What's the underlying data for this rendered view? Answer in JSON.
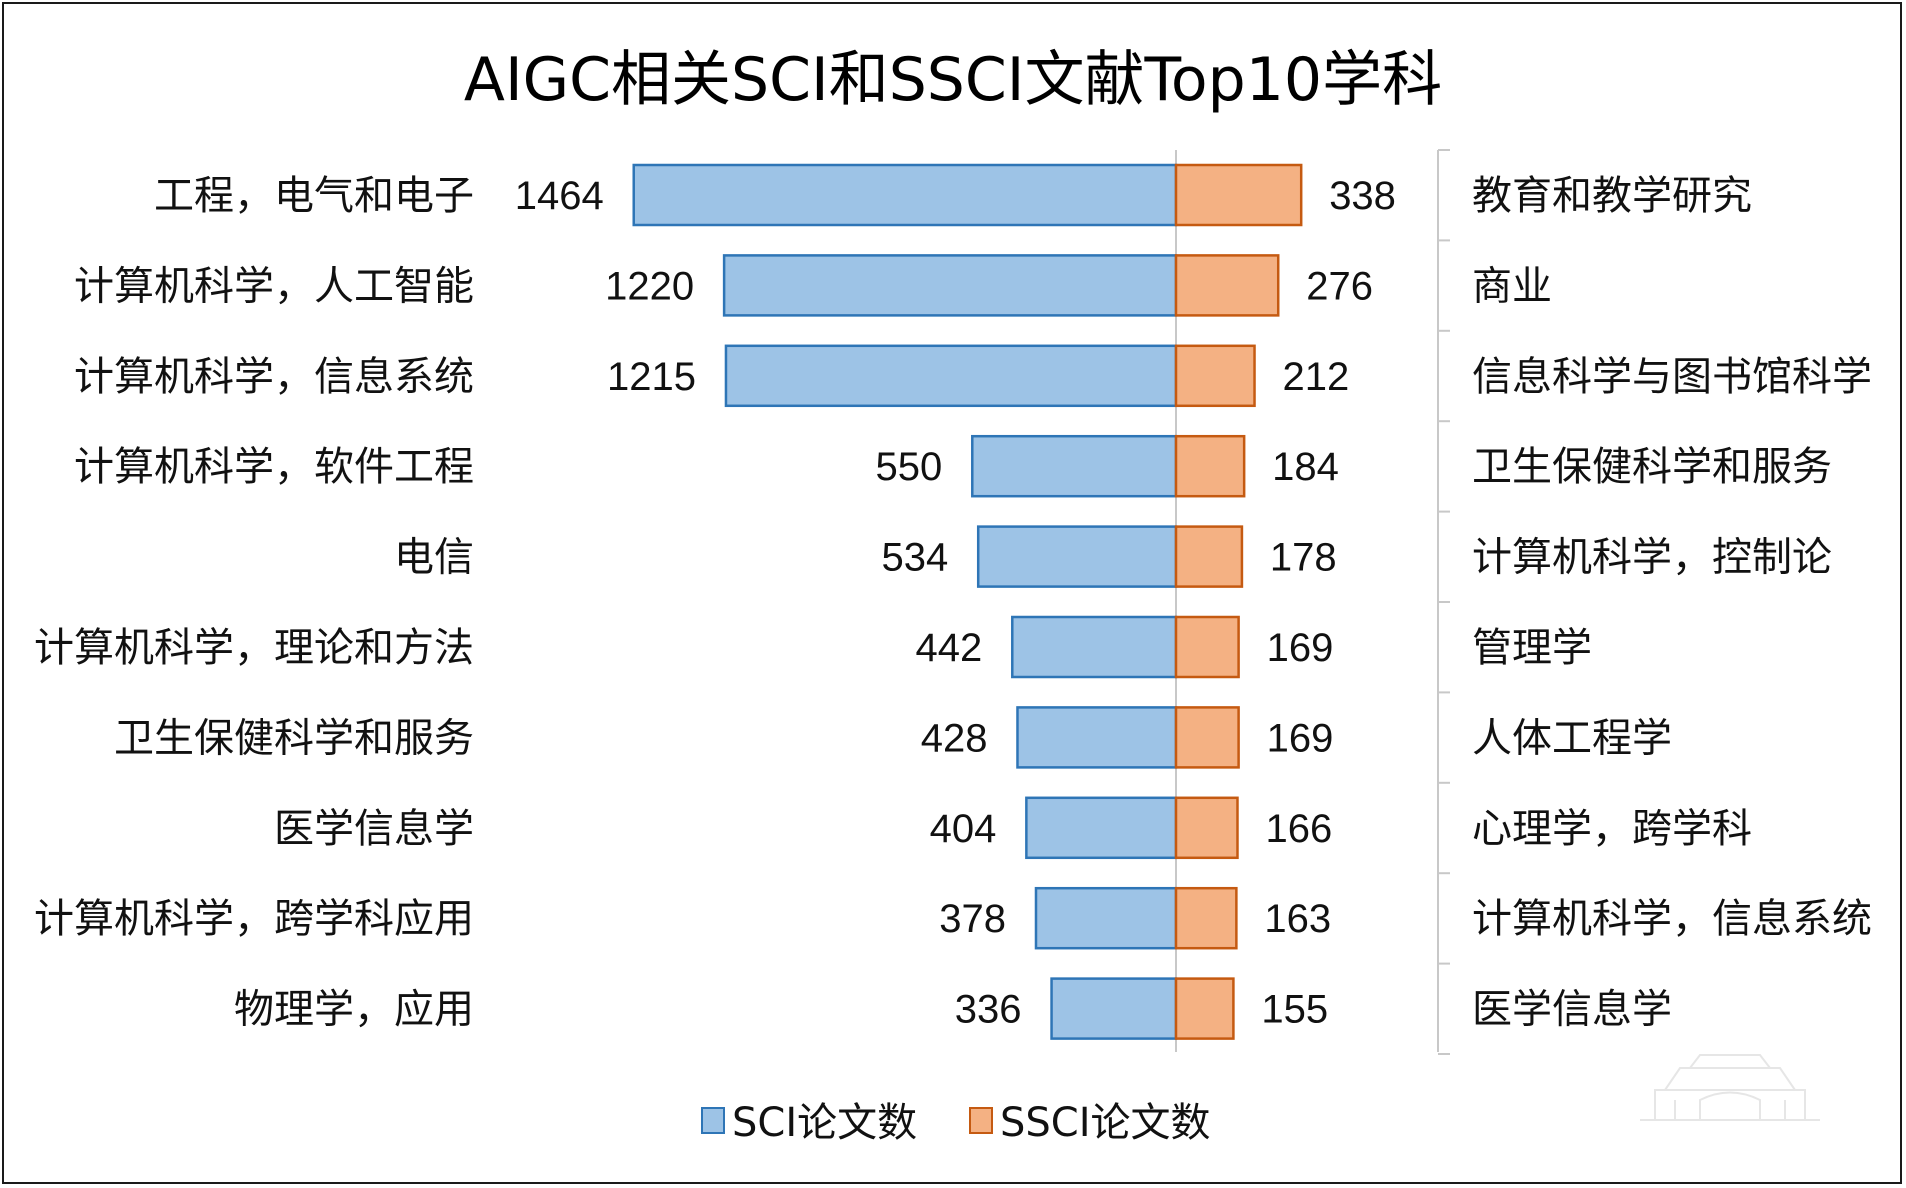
{
  "chart_data": {
    "type": "bar",
    "title": "AIGC相关SCI和SSCI文献Top10学科",
    "colors": {
      "sci_fill": "#9dc3e6",
      "sci_stroke": "#2e75b6",
      "ssci_fill": "#f4b183",
      "ssci_stroke": "#c55a11",
      "axis": "#c8c8c8"
    },
    "legend_position": "bottom",
    "series": [
      {
        "name": "SCI论文数",
        "categories": [
          "工程，电气和电子",
          "计算机科学，人工智能",
          "计算机科学，信息系统",
          "计算机科学，软件工程",
          "电信",
          "计算机科学，理论和方法",
          "卫生保健科学和服务",
          "医学信息学",
          "计算机科学，跨学科应用",
          "物理学，应用"
        ],
        "values": [
          1464,
          1220,
          1215,
          550,
          534,
          442,
          428,
          404,
          378,
          336
        ]
      },
      {
        "name": "SSCI论文数",
        "categories": [
          "教育和教学研究",
          "商业",
          "信息科学与图书馆科学",
          "卫生保健科学和服务",
          "计算机科学，控制论",
          "管理学",
          "人体工程学",
          "心理学，跨学科",
          "计算机科学，信息系统",
          "医学信息学"
        ],
        "values": [
          338,
          276,
          212,
          184,
          178,
          169,
          169,
          166,
          163,
          155
        ]
      }
    ]
  }
}
